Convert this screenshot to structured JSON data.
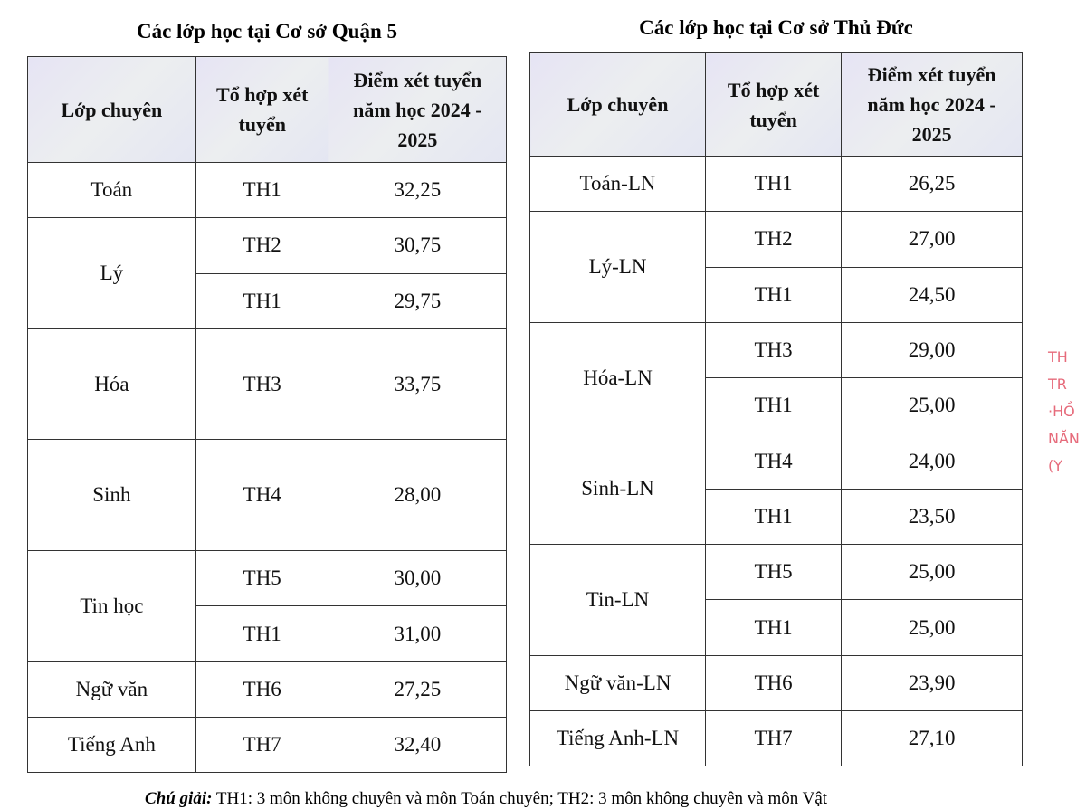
{
  "tables": [
    {
      "title": "Các lớp học tại Cơ sở Quận 5",
      "headers": [
        "Lớp chuyên",
        "Tổ hợp xét tuyển",
        "Điểm xét tuyển năm học 2024 - 2025"
      ],
      "groups": [
        {
          "class": "Toán",
          "rows": [
            [
              "TH1",
              "32,25"
            ]
          ]
        },
        {
          "class": "Lý",
          "rows": [
            [
              "TH2",
              "30,75"
            ],
            [
              "TH1",
              "29,75"
            ]
          ]
        },
        {
          "class": "Hóa",
          "rows": [
            [
              "TH3",
              "33,75"
            ]
          ]
        },
        {
          "class": "Sinh",
          "rows": [
            [
              "TH4",
              "28,00"
            ]
          ]
        },
        {
          "class": "Tin học",
          "rows": [
            [
              "TH5",
              "30,00"
            ],
            [
              "TH1",
              "31,00"
            ]
          ]
        },
        {
          "class": "Ngữ văn",
          "rows": [
            [
              "TH6",
              "27,25"
            ]
          ]
        },
        {
          "class": "Tiếng Anh",
          "rows": [
            [
              "TH7",
              "32,40"
            ]
          ]
        }
      ]
    },
    {
      "title": "Các lớp học tại Cơ sở Thủ Đức",
      "headers": [
        "Lớp chuyên",
        "Tổ hợp xét tuyển",
        "Điểm xét tuyển năm học 2024 - 2025"
      ],
      "groups": [
        {
          "class": "Toán-LN",
          "rows": [
            [
              "TH1",
              "26,25"
            ]
          ]
        },
        {
          "class": "Lý-LN",
          "rows": [
            [
              "TH2",
              "27,00"
            ],
            [
              "TH1",
              "24,50"
            ]
          ]
        },
        {
          "class": "Hóa-LN",
          "rows": [
            [
              "TH3",
              "29,00"
            ],
            [
              "TH1",
              "25,00"
            ]
          ]
        },
        {
          "class": "Sinh-LN",
          "rows": [
            [
              "TH4",
              "24,00"
            ],
            [
              "TH1",
              "23,50"
            ]
          ]
        },
        {
          "class": "Tin-LN",
          "rows": [
            [
              "TH5",
              "25,00"
            ],
            [
              "TH1",
              "25,00"
            ]
          ]
        },
        {
          "class": "Ngữ văn-LN",
          "rows": [
            [
              "TH6",
              "23,90"
            ]
          ]
        },
        {
          "class": "Tiếng Anh-LN",
          "rows": [
            [
              "TH7",
              "27,10"
            ]
          ]
        }
      ]
    }
  ],
  "footnote": {
    "label": "Chú giải:",
    "text": "TH1: 3 môn không chuyên và môn Toán chuyên; TH2: 3 môn không chuyên và môn Vật"
  },
  "stamp": [
    "TH",
    "TR",
    "·HỒ",
    "NĂN",
    "(Y"
  ]
}
